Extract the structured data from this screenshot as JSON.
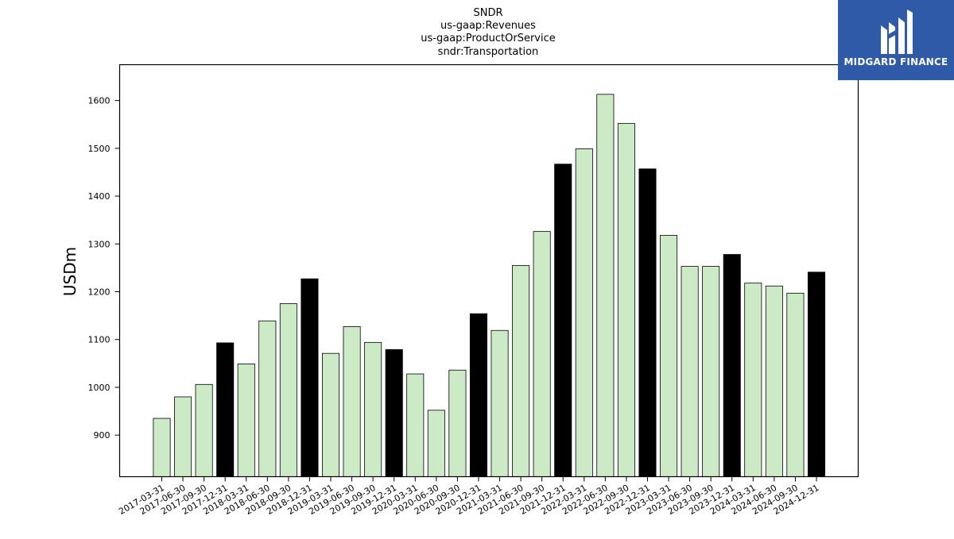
{
  "chart_data": {
    "type": "bar",
    "title_lines": [
      "SNDR",
      "us-gaap:Revenues",
      "us-gaap:ProductOrService",
      "sndr:Transportation"
    ],
    "xlabel": "",
    "ylabel": "USDm",
    "ylim": [
      813,
      1675
    ],
    "yticks": [
      900,
      1000,
      1100,
      1200,
      1300,
      1400,
      1500,
      1600
    ],
    "grid": false,
    "colors": {
      "quarter": "#cdeac6",
      "year_end": "#000000",
      "edge": "#000000"
    },
    "categories": [
      "2017-03-31",
      "2017-06-30",
      "2017-09-30",
      "2017-12-31",
      "2018-03-31",
      "2018-06-30",
      "2018-09-30",
      "2018-12-31",
      "2019-03-31",
      "2019-06-30",
      "2019-09-30",
      "2019-12-31",
      "2020-03-31",
      "2020-06-30",
      "2020-09-30",
      "2020-12-31",
      "2021-03-31",
      "2021-06-30",
      "2021-09-30",
      "2021-12-31",
      "2022-03-31",
      "2022-06-30",
      "2022-09-30",
      "2022-12-31",
      "2023-03-31",
      "2023-06-30",
      "2023-09-30",
      "2023-12-31",
      "2024-03-31",
      "2024-06-30",
      "2024-09-30",
      "2024-12-31"
    ],
    "values": [
      935,
      980,
      1006,
      1093,
      1049,
      1139,
      1175,
      1227,
      1071,
      1127,
      1094,
      1079,
      1028,
      952,
      1036,
      1154,
      1119,
      1255,
      1326,
      1467,
      1499,
      1613,
      1552,
      1457,
      1318,
      1253,
      1253,
      1278,
      1218,
      1212,
      1197,
      1241
    ]
  },
  "logo": {
    "text": "MIDGARD FINANCE"
  }
}
